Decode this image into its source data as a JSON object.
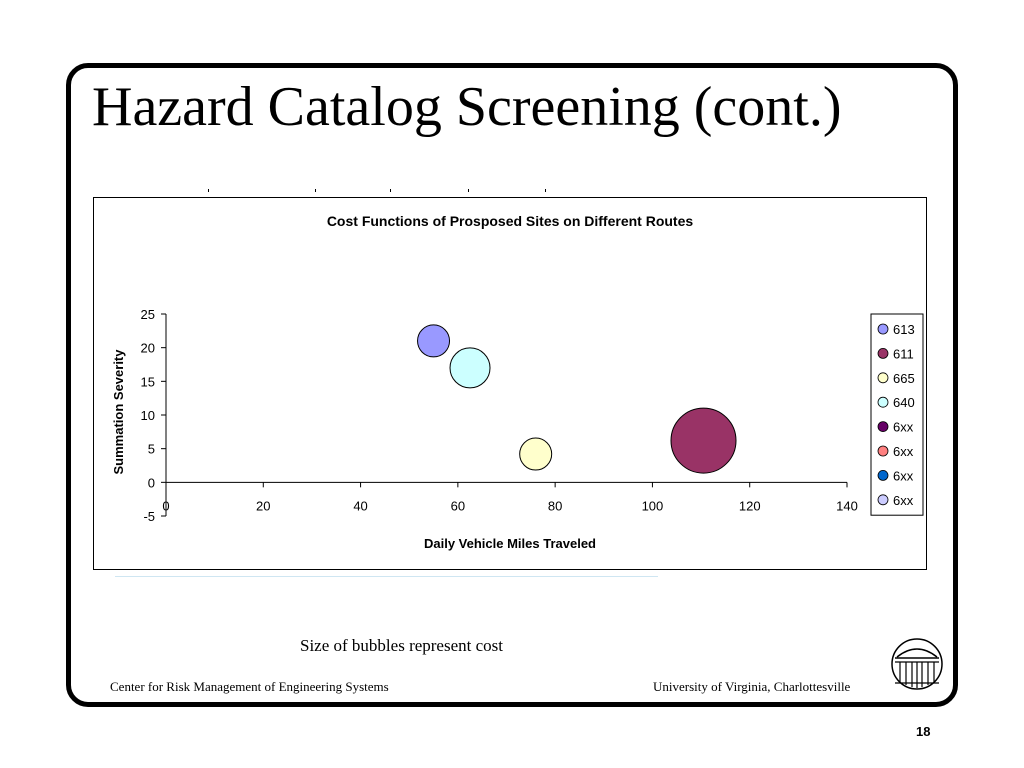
{
  "slide": {
    "title": "Hazard Catalog Screening (cont.)",
    "caption": "Size of bubbles represent cost",
    "footer_left": "Center for Risk Management of Engineering Systems",
    "footer_right": "University of Virginia, Charlottesville",
    "page_number": "18"
  },
  "logo": {
    "icon": "university-rotunda-logo-icon"
  },
  "chart_data": {
    "type": "scatter",
    "title": "Cost Functions of Prosposed Sites on Different Routes",
    "xlabel": "Daily Vehicle Miles Traveled",
    "ylabel": "Summation Severity",
    "xlim": [
      0,
      140
    ],
    "ylim": [
      -5,
      25
    ],
    "xticks": [
      0,
      20,
      40,
      60,
      80,
      100,
      120,
      140
    ],
    "yticks": [
      -5,
      0,
      5,
      10,
      15,
      20,
      25
    ],
    "grid": false,
    "legend_position": "right",
    "series": [
      {
        "name": "613",
        "color": "#9999ff",
        "points": [
          {
            "x": 55,
            "y": 21,
            "size": 3.2
          }
        ]
      },
      {
        "name": "611",
        "color": "#993366",
        "points": [
          {
            "x": 110.5,
            "y": 6.2,
            "size": 6.5
          }
        ]
      },
      {
        "name": "665",
        "color": "#ffffcc",
        "points": [
          {
            "x": 76,
            "y": 4.2,
            "size": 3.2
          }
        ]
      },
      {
        "name": "640",
        "color": "#ccffff",
        "points": [
          {
            "x": 62.5,
            "y": 17,
            "size": 4.0
          }
        ]
      },
      {
        "name": "6xx",
        "color": "#660066",
        "points": []
      },
      {
        "name": "6xx",
        "color": "#ff8080",
        "points": []
      },
      {
        "name": "6xx",
        "color": "#0066cc",
        "points": []
      },
      {
        "name": "6xx",
        "color": "#ccccff",
        "points": []
      }
    ]
  }
}
